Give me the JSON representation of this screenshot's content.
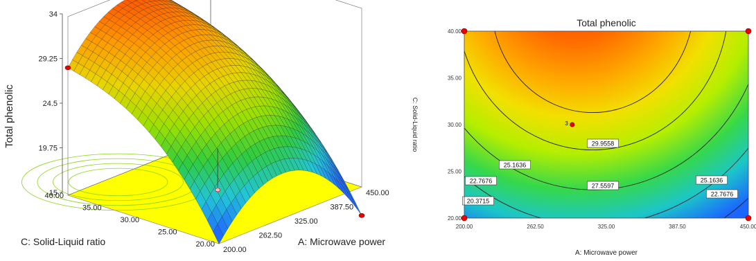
{
  "chart_data": [
    {
      "type": "surface",
      "zlabel": "Total phenolic",
      "xlabel": "A: Microwave power",
      "ylabel": "C: Solid-Liquid ratio",
      "x_ticks": [
        "200.00",
        "262.50",
        "325.00",
        "387.50",
        "450.00"
      ],
      "y_ticks": [
        "20.00",
        "25.00",
        "30.00",
        "35.00",
        "40.00"
      ],
      "z_ticks": [
        "15",
        "19.75",
        "24.5",
        "29.25",
        "34"
      ],
      "xlim": [
        200,
        450
      ],
      "ylim": [
        20,
        40
      ],
      "zlim": [
        15,
        34
      ],
      "model": {
        "x_peak": 310,
        "z_max": 33.4,
        "x_curvature": 0.0004,
        "y_slope": 0.68
      },
      "colors": [
        "#1f6bff",
        "#22c5d8",
        "#2ecc40",
        "#9be000",
        "#e8d400",
        "#ff9a00",
        "#ff4a00"
      ]
    },
    {
      "type": "contour",
      "title": "Total phenolic",
      "xlabel": "A: Microwave power",
      "ylabel": "C: Solid-Liquid ratio",
      "x_ticks": [
        "200.00",
        "262.50",
        "325.00",
        "387.50",
        "450.00"
      ],
      "y_ticks": [
        "20.00",
        "25.00",
        "30.00",
        "35.00",
        "40.00"
      ],
      "xlim": [
        200,
        450
      ],
      "ylim": [
        20,
        40
      ],
      "contour_levels": [
        "20.3715",
        "22.7676",
        "25.1636",
        "27.5597",
        "29.9558"
      ],
      "center_point_label": "3",
      "center_point": {
        "x": 295,
        "y": 30
      },
      "design_points": [
        {
          "x": 200,
          "y": 20
        },
        {
          "x": 200,
          "y": 40
        },
        {
          "x": 450,
          "y": 20
        },
        {
          "x": 450,
          "y": 40
        }
      ]
    }
  ]
}
